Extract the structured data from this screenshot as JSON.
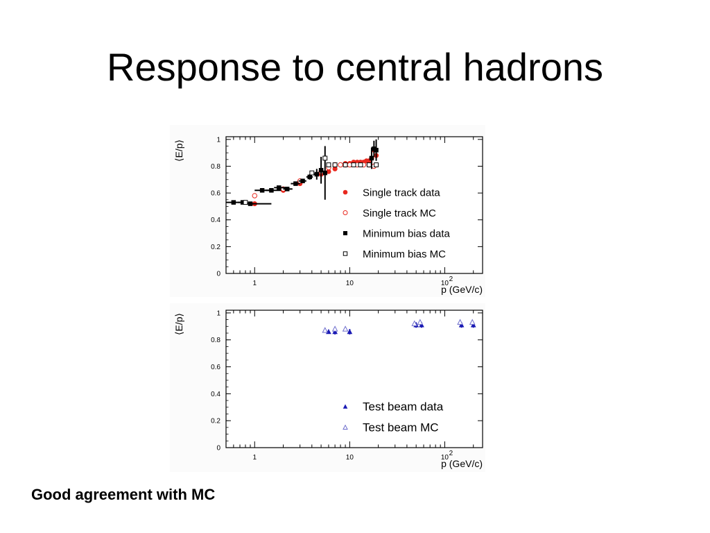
{
  "slide": {
    "title": "Response to central hadrons",
    "caption": "Good agreement with MC"
  },
  "chart_data": [
    {
      "type": "scatter",
      "xscale": "log",
      "xlim": [
        0.5,
        250
      ],
      "ylim": [
        0,
        1.02
      ],
      "xlabel": "p (GeV/c)",
      "ylabel": "⟨E/p⟩",
      "x_ticks": [
        {
          "v": 1,
          "label": "1"
        },
        {
          "v": 10,
          "label": "10"
        },
        {
          "v": 100,
          "label": "10",
          "sup": "2"
        }
      ],
      "y_ticks": [
        {
          "v": 0,
          "label": "0"
        },
        {
          "v": 0.2,
          "label": "0.2"
        },
        {
          "v": 0.4,
          "label": "0.4"
        },
        {
          "v": 0.6,
          "label": "0.6"
        },
        {
          "v": 0.8,
          "label": "0.8"
        },
        {
          "v": 1,
          "label": "1"
        }
      ],
      "legend_position": "bottom-right",
      "series": [
        {
          "name": "Single track data",
          "marker": "filled-circle",
          "color": "#e8281e",
          "points": [
            {
              "x": 1.0,
              "y": 0.52
            },
            {
              "x": 2.0,
              "y": 0.62
            },
            {
              "x": 3.0,
              "y": 0.67
            },
            {
              "x": 5.0,
              "y": 0.74
            },
            {
              "x": 6.0,
              "y": 0.76
            },
            {
              "x": 7.0,
              "y": 0.78
            },
            {
              "x": 8.0,
              "y": 0.81
            },
            {
              "x": 9.0,
              "y": 0.82
            },
            {
              "x": 10.0,
              "y": 0.82
            },
            {
              "x": 11.0,
              "y": 0.83
            },
            {
              "x": 12.0,
              "y": 0.83
            },
            {
              "x": 13.0,
              "y": 0.83
            },
            {
              "x": 14.0,
              "y": 0.83
            },
            {
              "x": 15.0,
              "y": 0.84
            },
            {
              "x": 16.0,
              "y": 0.84
            },
            {
              "x": 17.0,
              "y": 0.86
            },
            {
              "x": 18.0,
              "y": 0.92
            },
            {
              "x": 19.0,
              "y": 0.88
            }
          ]
        },
        {
          "name": "Single track MC",
          "marker": "open-circle",
          "color": "#e8281e",
          "points": [
            {
              "x": 1.0,
              "y": 0.58
            },
            {
              "x": 2.0,
              "y": 0.63
            },
            {
              "x": 3.0,
              "y": 0.69
            },
            {
              "x": 5.0,
              "y": 0.76
            },
            {
              "x": 6.0,
              "y": 0.79
            },
            {
              "x": 7.0,
              "y": 0.81
            },
            {
              "x": 8.0,
              "y": 0.81
            },
            {
              "x": 9.0,
              "y": 0.81
            },
            {
              "x": 10.0,
              "y": 0.81
            },
            {
              "x": 12.0,
              "y": 0.81
            },
            {
              "x": 14.0,
              "y": 0.81
            },
            {
              "x": 16.0,
              "y": 0.81
            },
            {
              "x": 18.0,
              "y": 0.8
            }
          ]
        },
        {
          "name": "Minimum bias data",
          "marker": "filled-square",
          "color": "#000000",
          "points": [
            {
              "x": 0.6,
              "y": 0.53,
              "xerr": [
                0.1,
                0.1
              ],
              "yerr": 0.01
            },
            {
              "x": 0.75,
              "y": 0.53,
              "xerr": [
                0.08,
                0.1
              ],
              "yerr": 0.01
            },
            {
              "x": 0.9,
              "y": 0.52,
              "xerr": [
                0.1,
                0.6
              ],
              "yerr": 0.01
            },
            {
              "x": 1.2,
              "y": 0.62,
              "xerr": [
                0.2,
                0.3
              ],
              "yerr": 0.01
            },
            {
              "x": 1.5,
              "y": 0.62,
              "xerr": [
                0.2,
                0.4
              ],
              "yerr": 0.01
            },
            {
              "x": 1.8,
              "y": 0.64,
              "xerr": [
                0.2,
                0.3
              ],
              "yerr": 0.01
            },
            {
              "x": 2.2,
              "y": 0.63,
              "xerr": [
                0.2,
                0.3
              ],
              "yerr": 0.01
            },
            {
              "x": 2.7,
              "y": 0.67,
              "xerr": [
                0.3,
                0.3
              ],
              "yerr": 0.01
            },
            {
              "x": 3.2,
              "y": 0.69,
              "xerr": [
                0.3,
                0.3
              ],
              "yerr": 0.01
            },
            {
              "x": 3.8,
              "y": 0.72,
              "xerr": [
                0.3,
                0.3
              ],
              "yerr": 0.02
            },
            {
              "x": 4.5,
              "y": 0.74,
              "xerr": [
                0.3,
                0.3
              ],
              "yerr": 0.04
            },
            {
              "x": 5.0,
              "y": 0.77,
              "xerr": [
                0.2,
                0.2
              ],
              "yerr": 0.1
            },
            {
              "x": 5.5,
              "y": 0.75,
              "xerr": [
                0.2,
                0.2
              ],
              "yerr": 0.2
            },
            {
              "x": 17.0,
              "y": 0.86,
              "xerr": [
                0,
                0
              ],
              "yerr": 0.08
            },
            {
              "x": 18.0,
              "y": 0.93,
              "xerr": [
                0,
                0
              ],
              "yerr": 0.06
            },
            {
              "x": 19.0,
              "y": 0.92,
              "xerr": [
                0,
                0
              ],
              "yerr": 0.08
            }
          ]
        },
        {
          "name": "Minimum bias MC",
          "marker": "open-square",
          "color": "#000000",
          "points": [
            {
              "x": 0.8,
              "y": 0.53
            },
            {
              "x": 4.0,
              "y": 0.75
            },
            {
              "x": 5.5,
              "y": 0.86
            },
            {
              "x": 6.0,
              "y": 0.81
            },
            {
              "x": 7.0,
              "y": 0.81
            },
            {
              "x": 9.0,
              "y": 0.81
            },
            {
              "x": 11.0,
              "y": 0.81
            },
            {
              "x": 13.0,
              "y": 0.81
            },
            {
              "x": 16.0,
              "y": 0.81
            },
            {
              "x": 19.0,
              "y": 0.81
            }
          ]
        }
      ]
    },
    {
      "type": "scatter",
      "xscale": "log",
      "xlim": [
        0.5,
        250
      ],
      "ylim": [
        0,
        1.02
      ],
      "xlabel": "p (GeV/c)",
      "ylabel": "⟨E/p⟩",
      "x_ticks": [
        {
          "v": 1,
          "label": "1"
        },
        {
          "v": 10,
          "label": "10"
        },
        {
          "v": 100,
          "label": "10",
          "sup": "2"
        }
      ],
      "y_ticks": [
        {
          "v": 0,
          "label": "0"
        },
        {
          "v": 0.2,
          "label": "0.2"
        },
        {
          "v": 0.4,
          "label": "0.4"
        },
        {
          "v": 0.6,
          "label": "0.6"
        },
        {
          "v": 0.8,
          "label": "0.8"
        },
        {
          "v": 1,
          "label": "1"
        }
      ],
      "legend_position": "bottom-right",
      "series": [
        {
          "name": "Test beam data",
          "marker": "filled-triangle",
          "color": "#1a1ab4",
          "points": [
            {
              "x": 6.0,
              "y": 0.86,
              "yerr": 0.01
            },
            {
              "x": 7.0,
              "y": 0.86,
              "yerr": 0.02
            },
            {
              "x": 10.0,
              "y": 0.86,
              "yerr": 0.02
            },
            {
              "x": 50.0,
              "y": 0.91,
              "yerr": 0.02
            },
            {
              "x": 57.0,
              "y": 0.91,
              "yerr": 0.02
            },
            {
              "x": 150.0,
              "y": 0.91,
              "yerr": 0.02
            },
            {
              "x": 200.0,
              "y": 0.91,
              "yerr": 0.02
            }
          ]
        },
        {
          "name": "Test beam MC",
          "marker": "open-triangle",
          "color": "#6c6ccc",
          "points": [
            {
              "x": 5.5,
              "y": 0.87
            },
            {
              "x": 7.0,
              "y": 0.88
            },
            {
              "x": 9.0,
              "y": 0.88
            },
            {
              "x": 48.0,
              "y": 0.92
            },
            {
              "x": 55.0,
              "y": 0.93
            },
            {
              "x": 145.0,
              "y": 0.93
            },
            {
              "x": 195.0,
              "y": 0.93
            }
          ]
        }
      ]
    }
  ]
}
